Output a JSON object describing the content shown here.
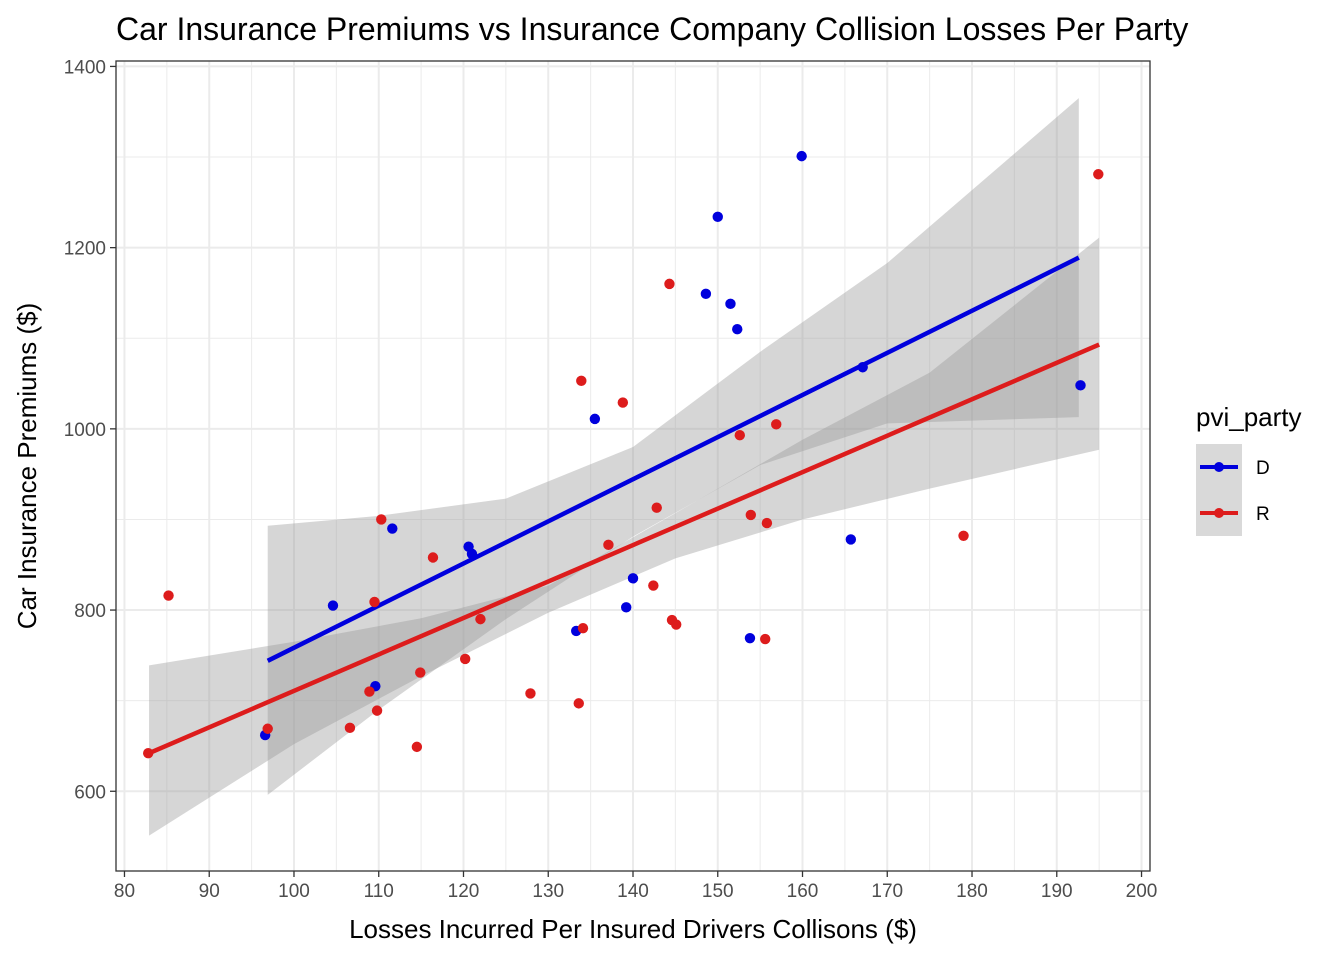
{
  "chart_data": {
    "type": "scatter",
    "title": "Car Insurance Premiums vs  Insurance Company Collision Losses Per Party",
    "xlabel": "Losses Incurred Per Insured Drivers Collisons ($)",
    "ylabel": "Car Insurance Premiums ($)",
    "xlim": [
      79,
      201
    ],
    "ylim": [
      512,
      1406
    ],
    "x_ticks": [
      80,
      90,
      100,
      110,
      120,
      130,
      140,
      150,
      160,
      170,
      180,
      190,
      200
    ],
    "y_ticks": [
      600,
      800,
      1000,
      1200,
      1400
    ],
    "grid": true,
    "legend": {
      "title": "pvi_party",
      "placement": "right"
    },
    "series": [
      {
        "name": "D",
        "color": "#0000dd",
        "points": [
          [
            96.6,
            662
          ],
          [
            104.6,
            805
          ],
          [
            109.6,
            716
          ],
          [
            111.6,
            890
          ],
          [
            120.6,
            870
          ],
          [
            121.0,
            862
          ],
          [
            133.3,
            777
          ],
          [
            135.5,
            1011
          ],
          [
            139.2,
            803
          ],
          [
            140.0,
            835
          ],
          [
            148.6,
            1149
          ],
          [
            150.0,
            1234
          ],
          [
            151.5,
            1138
          ],
          [
            152.3,
            1110
          ],
          [
            153.8,
            769
          ],
          [
            159.9,
            1301
          ],
          [
            165.7,
            878
          ],
          [
            167.1,
            1068
          ],
          [
            192.8,
            1048
          ]
        ],
        "fit": {
          "x": [
            96.9,
            192.6
          ],
          "y": [
            744,
            1189
          ]
        },
        "ci": {
          "x": [
            96.9,
            110,
            125,
            140,
            155,
            170,
            192.6
          ],
          "lower": [
            596,
            690,
            790,
            881,
            960,
            1006,
            1013
          ],
          "upper": [
            893,
            904,
            923,
            980,
            1085,
            1183,
            1365
          ]
        }
      },
      {
        "name": "R",
        "color": "#dd1c1c",
        "points": [
          [
            82.8,
            642
          ],
          [
            85.2,
            816
          ],
          [
            96.9,
            669
          ],
          [
            106.6,
            670
          ],
          [
            108.9,
            710
          ],
          [
            109.5,
            809
          ],
          [
            109.8,
            689
          ],
          [
            110.3,
            900
          ],
          [
            114.5,
            649
          ],
          [
            114.9,
            731
          ],
          [
            116.4,
            858
          ],
          [
            120.2,
            746
          ],
          [
            122.0,
            790
          ],
          [
            127.9,
            708
          ],
          [
            133.6,
            697
          ],
          [
            133.9,
            1053
          ],
          [
            134.1,
            780
          ],
          [
            137.1,
            872
          ],
          [
            138.8,
            1029
          ],
          [
            142.4,
            827
          ],
          [
            142.8,
            913
          ],
          [
            144.3,
            1160
          ],
          [
            144.6,
            789
          ],
          [
            145.1,
            784
          ],
          [
            152.6,
            993
          ],
          [
            153.9,
            905
          ],
          [
            155.6,
            768
          ],
          [
            155.8,
            896
          ],
          [
            156.9,
            1005
          ],
          [
            179.0,
            882
          ],
          [
            194.9,
            1281
          ]
        ],
        "fit": {
          "x": [
            82.9,
            195.0
          ],
          "y": [
            642,
            1093
          ]
        },
        "ci": {
          "x": [
            82.9,
            100,
            115,
            130,
            145,
            160,
            175,
            195.0
          ],
          "lower": [
            551,
            652,
            727,
            797,
            857,
            900,
            934,
            977
          ],
          "upper": [
            739,
            765,
            791,
            827,
            907,
            988,
            1062,
            1211
          ]
        }
      }
    ]
  }
}
